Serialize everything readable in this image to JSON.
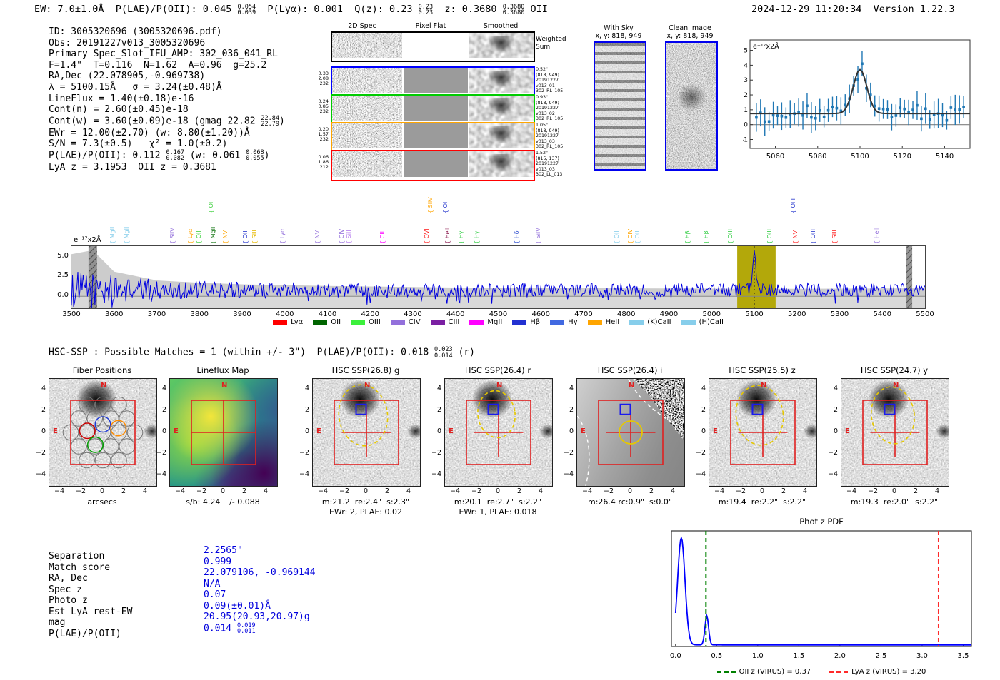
{
  "header": {
    "left": [
      {
        "t": "EW: 7.0±1.0Å  P(LAE)/P(OII): 0.045 "
      },
      {
        "hi": "0.054",
        "lo": "0.039"
      },
      {
        "t": "  P(Lyα): 0.001  Q(z): 0.23 "
      },
      {
        "hi": "0.23",
        "lo": "0.23"
      },
      {
        "t": "  z: 0.3680 "
      },
      {
        "hi": "0.3680",
        "lo": "0.3680"
      },
      {
        "t": " OII"
      }
    ],
    "right": "2024-12-29 11:20:34  Version 1.22.3"
  },
  "info_lines": [
    [
      {
        "t": "ID: 3005320696 (3005320696.pdf)"
      }
    ],
    [
      {
        "t": "Obs: 20191227v013_3005320696"
      }
    ],
    [
      {
        "t": "Primary Spec_Slot_IFU_AMP: 302_036_041_RL"
      }
    ],
    [
      {
        "t": "F=1.4\"  T=0.116  N=1.62  A=0.96  g=25.2"
      }
    ],
    [
      {
        "t": "RA,Dec (22.078905,-0.969738)"
      }
    ],
    [
      {
        "t": "λ = 5100.15Å   σ = 3.24(±0.48)Å"
      }
    ],
    [
      {
        "t": "LineFlux = 1.40(±0.18)e-16"
      }
    ],
    [
      {
        "t": "Cont(n) = 2.60(±0.45)e-18"
      }
    ],
    [
      {
        "t": "Cont(w) = 3.60(±0.09)e-18 (gmag 22.82 "
      },
      {
        "hi": "22.84",
        "lo": "22.79"
      },
      {
        "t": ")"
      }
    ],
    [
      {
        "t": "EWr = 12.00(±2.70) (w: 8.80(±1.20))Å"
      }
    ],
    [
      {
        "t": "S/N = 7.3(±0.5)   χ² = 1.0(±0.2)"
      }
    ],
    [
      {
        "t": "P(LAE)/P(OII): 0.112 "
      },
      {
        "hi": "0.167",
        "lo": "0.082"
      },
      {
        "t": " (w: 0.061 "
      },
      {
        "hi": "0.068",
        "lo": "0.055"
      },
      {
        "t": ")"
      }
    ],
    [
      {
        "t": "LyA z = 3.1953  OII z = 0.3681"
      }
    ]
  ],
  "spec2d": {
    "col_headers": [
      "2D Spec",
      "Pixel Flat",
      "Smoothed"
    ],
    "weighted_label": [
      "Weighted",
      "Sum"
    ],
    "rows": [
      {
        "color": "#000000",
        "left": [],
        "right": []
      },
      {
        "color": "#0000ff",
        "left": [
          "0.33",
          "2.08",
          "232"
        ],
        "right": [
          "0.52\"",
          "(818, 949)",
          "20191227",
          "v013_01",
          "302_RL_105"
        ]
      },
      {
        "color": "#00cc00",
        "left": [
          "0.24",
          "0.85",
          "232"
        ],
        "right": [
          "0.93\"",
          "(818, 949)",
          "20191227",
          "v013_02",
          "302_RL_105"
        ]
      },
      {
        "color": "#ffa500",
        "left": [
          "0.20",
          "1.57",
          "232"
        ],
        "right": [
          "1.05\"",
          "(818, 949)",
          "20191227",
          "v013_03",
          "302_RL_105"
        ]
      },
      {
        "color": "#ff0000",
        "left": [
          "0.06",
          "1.86",
          "212"
        ],
        "right": [
          "1.52\"",
          "(815, 137)",
          "20191227",
          "v013_03",
          "302_LL_013"
        ]
      }
    ]
  },
  "sky_panels": {
    "with_sky_title": [
      "With Sky",
      "x, y: 818, 949"
    ],
    "clean_title": [
      "Clean Image",
      "x, y: 818, 949"
    ]
  },
  "hsc_line": [
    {
      "t": "HSC-SSP : Possible Matches = 1 (within +/- 3\")  P(LAE)/P(OII): 0.018 "
    },
    {
      "hi": "0.023",
      "lo": "0.014"
    },
    {
      "t": " (r)"
    }
  ],
  "spectrum": {
    "unit_label": "e⁻¹⁷x2Å",
    "ytick_labels": [
      "5.0",
      "2.5",
      "0.0"
    ],
    "markers": [
      {
        "label": "MgII",
        "wl": 3604,
        "tier": 0,
        "color": "#87ceeb"
      },
      {
        "label": "MgII",
        "wl": 3637,
        "tier": 0,
        "color": "#87ceeb"
      },
      {
        "label": "SiIV",
        "wl": 3744,
        "tier": 0,
        "color": "#9370db"
      },
      {
        "label": "Lyα",
        "wl": 3786,
        "tier": 0,
        "color": "#ffa500"
      },
      {
        "label": "OII",
        "wl": 3806,
        "tier": 0,
        "color": "#3cd03c"
      },
      {
        "label": "OII",
        "wl": 3835,
        "tier": 1,
        "color": "#3cd03c"
      },
      {
        "label": "MgII",
        "wl": 3840,
        "tier": 0,
        "color": "#1a7a1a"
      },
      {
        "label": "NV",
        "wl": 3868,
        "tier": 0,
        "color": "#ffa500"
      },
      {
        "label": "OII",
        "wl": 3915,
        "tier": 0,
        "color": "#2233cc"
      },
      {
        "label": "SIII",
        "wl": 3937,
        "tier": 0,
        "color": "#e6b800"
      },
      {
        "label": "Lyα",
        "wl": 4002,
        "tier": 0,
        "color": "#9370db"
      },
      {
        "label": "NV",
        "wl": 4084,
        "tier": 0,
        "color": "#9370db"
      },
      {
        "label": "CIV",
        "wl": 4141,
        "tier": 0,
        "color": "#9370db"
      },
      {
        "label": "SiII",
        "wl": 4158,
        "tier": 0,
        "color": "#b57bee"
      },
      {
        "label": "CII",
        "wl": 4236,
        "tier": 0,
        "color": "#ff00ff"
      },
      {
        "label": "OVI",
        "wl": 4340,
        "tier": 0,
        "color": "#ff2222"
      },
      {
        "label": "SiIV",
        "wl": 4348,
        "tier": 1,
        "color": "#ffa500"
      },
      {
        "label": "OII",
        "wl": 4384,
        "tier": 1,
        "color": "#2233cc"
      },
      {
        "label": "HeII",
        "wl": 4388,
        "tier": 0,
        "color": "#8b1a4f"
      },
      {
        "label": "Hγ",
        "wl": 4420,
        "tier": 0,
        "color": "#2ecc40"
      },
      {
        "label": "Hγ",
        "wl": 4457,
        "tier": 0,
        "color": "#2ecc40"
      },
      {
        "label": "Hδ",
        "wl": 4551,
        "tier": 0,
        "color": "#2244cc"
      },
      {
        "label": "SiIV",
        "wl": 4601,
        "tier": 0,
        "color": "#9370db"
      },
      {
        "label": "OII",
        "wl": 4785,
        "tier": 0,
        "color": "#87ceeb"
      },
      {
        "label": "CIV",
        "wl": 4817,
        "tier": 0,
        "color": "#ffa500"
      },
      {
        "label": "OII",
        "wl": 4834,
        "tier": 0,
        "color": "#87ceeb"
      },
      {
        "label": "Hβ",
        "wl": 4951,
        "tier": 0,
        "color": "#2ecc40"
      },
      {
        "label": "Hβ",
        "wl": 4995,
        "tier": 0,
        "color": "#2ecc40"
      },
      {
        "label": "OIII",
        "wl": 5052,
        "tier": 0,
        "color": "#2ecc40"
      },
      {
        "label": "OIII",
        "wl": 5143,
        "tier": 0,
        "color": "#2ecc40"
      },
      {
        "label": "OIII",
        "wl": 5199,
        "tier": 1,
        "color": "#2233cc"
      },
      {
        "label": "NV",
        "wl": 5204,
        "tier": 0,
        "color": "#ff2222"
      },
      {
        "label": "OIII",
        "wl": 5245,
        "tier": 0,
        "color": "#2233cc"
      },
      {
        "label": "SIII",
        "wl": 5296,
        "tier": 0,
        "color": "#ff2222"
      },
      {
        "label": "HeII",
        "wl": 5394,
        "tier": 0,
        "color": "#9370db"
      }
    ],
    "legend": [
      {
        "label": "Lyα",
        "color": "#ff0000"
      },
      {
        "label": "OII",
        "color": "#006400"
      },
      {
        "label": "OIII",
        "color": "#3cf03c"
      },
      {
        "label": "CIV",
        "color": "#9370db"
      },
      {
        "label": "CIII",
        "color": "#7a1fa2"
      },
      {
        "label": "MgII",
        "color": "#ff00ff"
      },
      {
        "label": "Hβ",
        "color": "#2231d1"
      },
      {
        "label": "Hγ",
        "color": "#4169e1"
      },
      {
        "label": "HeII",
        "color": "#ffa500"
      },
      {
        "label": "(K)CaII",
        "color": "#87ceeb"
      },
      {
        "label": "(H)CaII",
        "color": "#87ceeb"
      }
    ]
  },
  "panels": [
    {
      "title": "Fiber Positions",
      "cap1": "arcsecs",
      "cap2": ""
    },
    {
      "title": "Lineflux Map",
      "cap1": "s/b: 4.24 +/- 0.088",
      "cap2": ""
    },
    {
      "title": "HSC SSP(26.8) g",
      "cap1": "m:21.2  re:2.4\"  s:2.3\"",
      "cap2": "EWr: 2, PLAE: 0.02"
    },
    {
      "title": "HSC SSP(26.4) r",
      "cap1": "m:20.1  re:2.7\"  s:2.2\"",
      "cap2": "EWr: 1, PLAE: 0.018"
    },
    {
      "title": "HSC SSP(26.4) i",
      "cap1": "m:26.4 rc:0.9\"  s:0.0\"",
      "cap2": ""
    },
    {
      "title": "HSC SSP(25.5) z",
      "cap1": "m:19.4  re:2.2\"  s:2.2\"",
      "cap2": ""
    },
    {
      "title": "HSC SSP(24.7) y",
      "cap1": "m:19.3  re:2.0\"  s:2.2\"",
      "cap2": ""
    }
  ],
  "panel_ticks": [
    "−4",
    "−2",
    "0",
    "2",
    "4"
  ],
  "match_table": {
    "rows": [
      {
        "label": "Separation",
        "value": [
          {
            "t": "2.2565\""
          }
        ]
      },
      {
        "label": "Match score",
        "value": [
          {
            "t": "0.999"
          }
        ]
      },
      {
        "label": "RA, Dec",
        "value": [
          {
            "t": "22.079106, -0.969144"
          }
        ]
      },
      {
        "label": "Spec z",
        "value": [
          {
            "t": "N/A"
          }
        ]
      },
      {
        "label": "Photo z",
        "value": [
          {
            "t": "0.07"
          }
        ]
      },
      {
        "label": "Est LyA rest-EW",
        "value": [
          {
            "t": "0.09(±0.01)Å"
          }
        ]
      },
      {
        "label": "mag",
        "value": [
          {
            "t": "20.95(20.93,20.97)g"
          }
        ]
      },
      {
        "label": "P(LAE)/P(OII)",
        "value": [
          {
            "t": "0.014 "
          },
          {
            "hi": "0.019",
            "lo": "0.011"
          }
        ]
      }
    ]
  },
  "photz": {
    "title": "Phot z PDF",
    "xtick_labels": [
      "0.0",
      "0.5",
      "1.0",
      "1.5",
      "2.0",
      "2.5",
      "3.0",
      "3.5"
    ],
    "legend": [
      {
        "label": "OII z (VIRUS) = 0.37",
        "color": "#008000"
      },
      {
        "label": "LyA z (VIRUS) = 3.20",
        "color": "#ff2a2a"
      }
    ]
  },
  "chart_data": [
    {
      "id": "line_fit_plot",
      "type": "scatter",
      "xlabel": "wavelength (Å)",
      "unit_label": "e⁻¹⁷x2Å",
      "xlim": [
        5048,
        5152
      ],
      "ylim": [
        -1.6,
        5.7
      ],
      "xticks": [
        5060,
        5080,
        5100,
        5120,
        5140
      ],
      "yticks": [
        -1,
        0,
        1,
        2,
        3,
        4,
        5
      ],
      "points_color": "#1f77b4",
      "points_description": "errorbar flux samples every ~2Å scattered about baseline 0.75, errors ±0.7, peaking ~4.6 at 5100Å",
      "gaussian_fit": {
        "center": 5100,
        "sigma": 3.24,
        "peak_above_baseline": 2.95,
        "baseline": 0.75,
        "color": "#333333"
      }
    },
    {
      "id": "full_spectrum",
      "type": "line",
      "unit_label": "e⁻¹⁷x2Å",
      "xlim": [
        3500,
        5500
      ],
      "ylim": [
        -1.5,
        6.3
      ],
      "xticks": [
        3500,
        3600,
        3700,
        3800,
        3900,
        4000,
        4100,
        4200,
        4300,
        4400,
        4500,
        4600,
        4700,
        4800,
        4900,
        5000,
        5100,
        5200,
        5300,
        5400,
        5500
      ],
      "yticks": [
        0.0,
        2.5,
        5.0
      ],
      "line_color": "#0000e0",
      "baseline": 0.8,
      "emission_line": {
        "center": 5100,
        "peak": 5.0,
        "sigma": 3.24
      },
      "noise_envelope": [
        [
          3500,
          5.3
        ],
        [
          3550,
          5.8
        ],
        [
          3600,
          3.1
        ],
        [
          3700,
          2.0
        ],
        [
          3800,
          1.7
        ],
        [
          3900,
          1.5
        ],
        [
          4100,
          1.3
        ],
        [
          4400,
          1.1
        ],
        [
          4800,
          1.0
        ],
        [
          5200,
          0.95
        ],
        [
          5500,
          1.0
        ]
      ],
      "highlight_region": {
        "x0": 5060,
        "x1": 5150,
        "color": "#b3a80a",
        "center_line": 5100
      },
      "masked_bands": [
        [
          3540,
          3560
        ],
        [
          5455,
          5470
        ]
      ],
      "legend_position": "bottom"
    },
    {
      "id": "phot_z_pdf",
      "type": "line",
      "title": "Phot z PDF",
      "xlim": [
        -0.05,
        3.6
      ],
      "xticks": [
        0.0,
        0.5,
        1.0,
        1.5,
        2.0,
        2.5,
        3.0,
        3.5
      ],
      "curve_color": "#0000ff",
      "baseline": 0.015,
      "peaks": [
        {
          "z": 0.07,
          "height": 1.0
        },
        {
          "z": 0.38,
          "height": 0.27
        }
      ],
      "vlines": [
        {
          "z": 0.37,
          "color": "#008000",
          "style": "dashed",
          "label": "OII z (VIRUS) = 0.37"
        },
        {
          "z": 3.2,
          "color": "#ff2a2a",
          "style": "dashed",
          "label": "LyA z (VIRUS) = 3.20"
        }
      ]
    }
  ]
}
